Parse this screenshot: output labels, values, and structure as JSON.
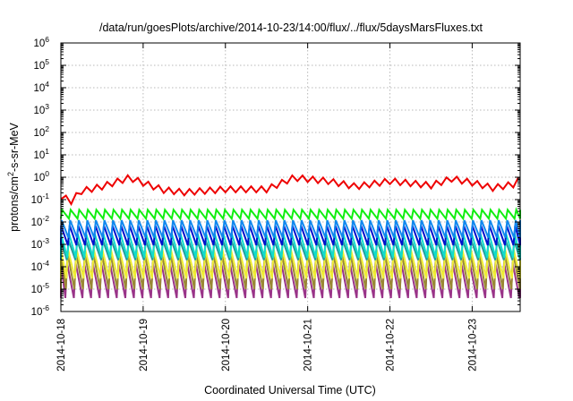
{
  "chart_data": {
    "type": "line",
    "title": "/data/run/goesPlots/archive/2014-10-23/14:00/flux/../flux/5daysMarsFluxes.txt",
    "xlabel": "Coordinated Universal Time (UTC)",
    "ylabel": "protons/cm2-s-sr-MeV",
    "ylabel_parts": {
      "base": "protons/cm",
      "sup": "2",
      "rest": "-s-sr-MeV"
    },
    "y_scale": "log",
    "ylim_exponents": [
      -6,
      6
    ],
    "y_tick_base": "10",
    "y_tick_exponents": [
      "6",
      "5",
      "4",
      "3",
      "2",
      "1",
      "0",
      "-1",
      "-2",
      "-3",
      "-4",
      "-5",
      "-6"
    ],
    "xlim": [
      "2014-10-18",
      "2014-10-23 14:00"
    ],
    "x_tick_labels": [
      "2014-10-18",
      "2014-10-19",
      "2014-10-20",
      "2014-10-21",
      "2014-10-22",
      "2014-10-23"
    ],
    "grid": true,
    "legend": "none",
    "sawtooth_period_hours": 2.5,
    "series": [
      {
        "color": "#ee0000",
        "period_hours": 3.0,
        "trend": [
          [
            "2014-10-18 00:00",
            0.15
          ],
          [
            "2014-10-18 03:00",
            0.09
          ],
          [
            "2014-10-18 06:00",
            0.25
          ],
          [
            "2014-10-18 12:00",
            0.4
          ],
          [
            "2014-10-18 20:00",
            1.0
          ],
          [
            "2014-10-19 03:00",
            0.4
          ],
          [
            "2014-10-19 06:00",
            0.28
          ],
          [
            "2014-10-19 12:00",
            0.22
          ],
          [
            "2014-10-20 00:00",
            0.3
          ],
          [
            "2014-10-20 12:00",
            0.3
          ],
          [
            "2014-10-20 20:00",
            1.0
          ],
          [
            "2014-10-21 06:00",
            0.7
          ],
          [
            "2014-10-21 14:00",
            0.4
          ],
          [
            "2014-10-22 00:00",
            0.7
          ],
          [
            "2014-10-22 12:00",
            0.45
          ],
          [
            "2014-10-22 18:00",
            0.9
          ],
          [
            "2014-10-23 00:00",
            0.6
          ],
          [
            "2014-10-23 06:00",
            0.35
          ],
          [
            "2014-10-23 12:00",
            0.5
          ],
          [
            "2014-10-23 14:00",
            0.9
          ]
        ],
        "high": 1.3,
        "low": 0.7
      },
      {
        "color": "#11ee11",
        "min": 0.014,
        "max": 0.035
      },
      {
        "color": "#1188ee",
        "min": 0.002,
        "max": 0.012
      },
      {
        "color": "#0011cc",
        "min": 0.0009,
        "max": 0.007
      },
      {
        "color": "#11ddcc",
        "min": 0.00025,
        "max": 0.003
      },
      {
        "color": "#229999",
        "min": 0.0002,
        "max": 0.0015
      },
      {
        "color": "#eeee33",
        "min": 3e-05,
        "max": 0.0006
      },
      {
        "color": "#998833",
        "min": 1e-05,
        "max": 0.0004
      },
      {
        "color": "#993388",
        "min": 4e-06,
        "max": 0.00015
      }
    ]
  }
}
